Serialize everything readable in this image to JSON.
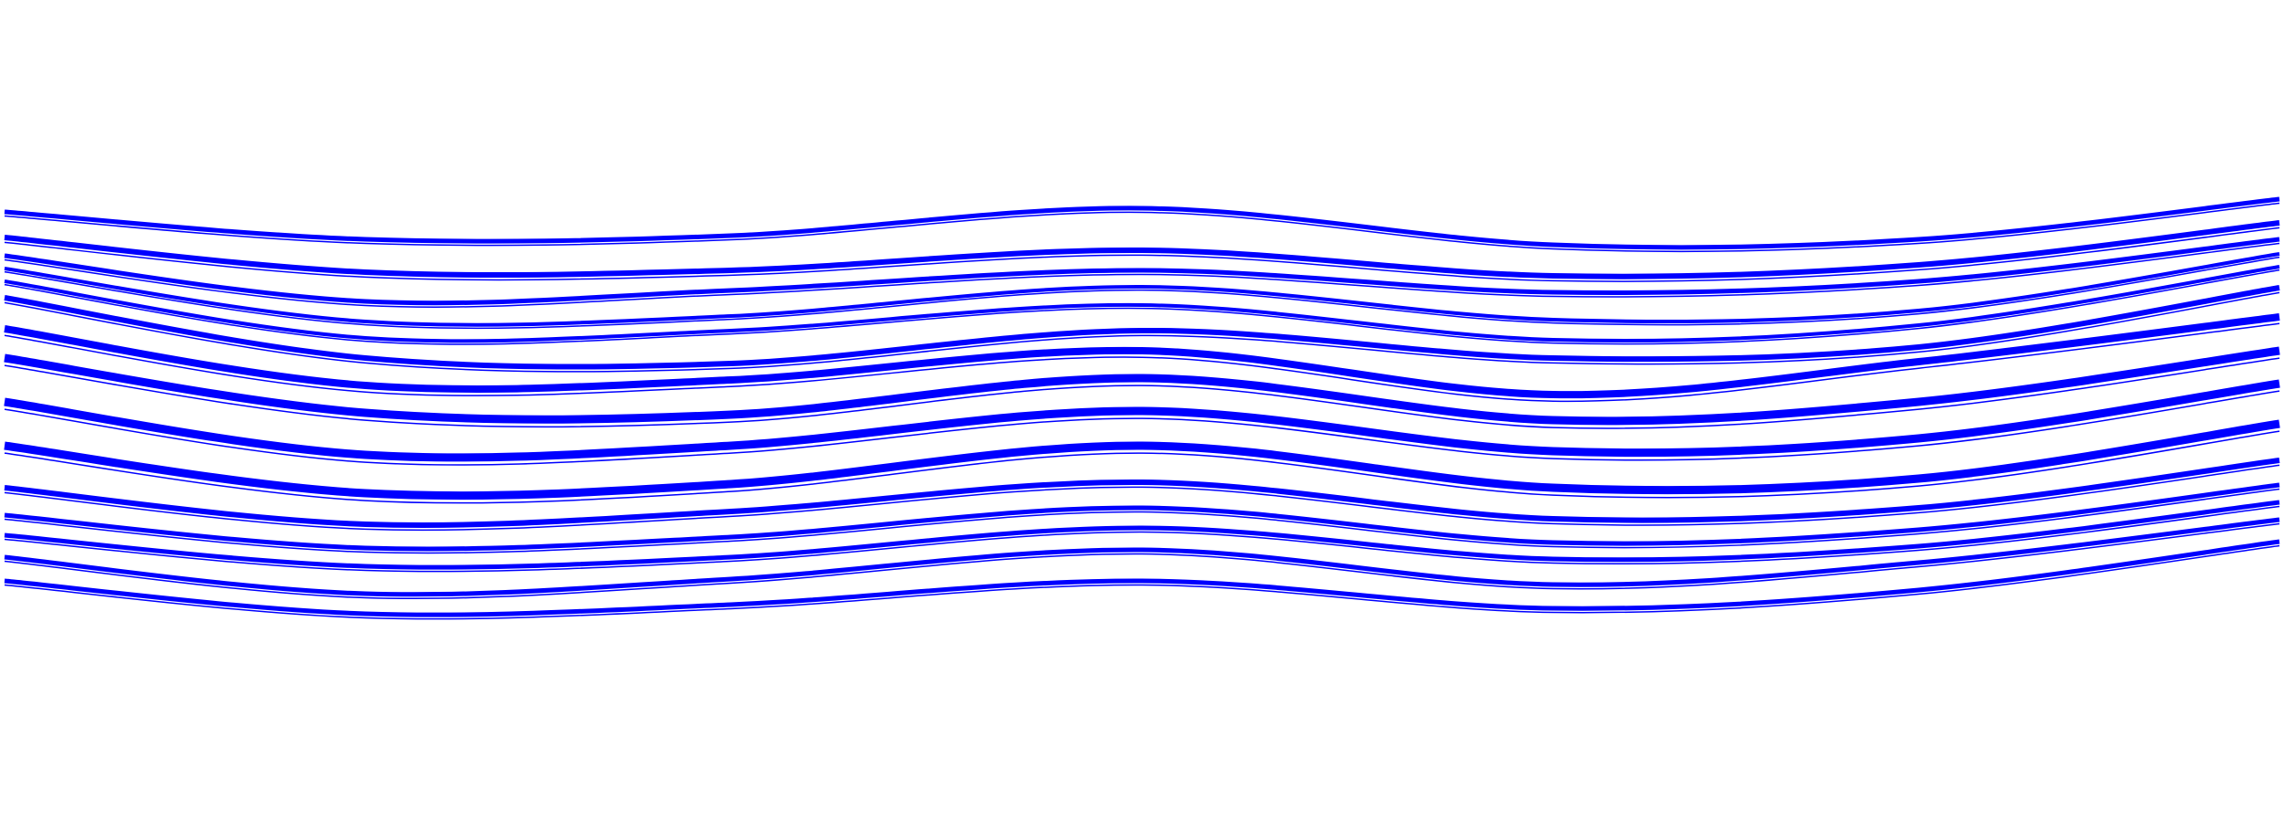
{
  "artwork": {
    "name": "flowing-wave-lines",
    "stroke_color": "#0000ff",
    "background_color": "#ffffff",
    "line_count": 16
  }
}
